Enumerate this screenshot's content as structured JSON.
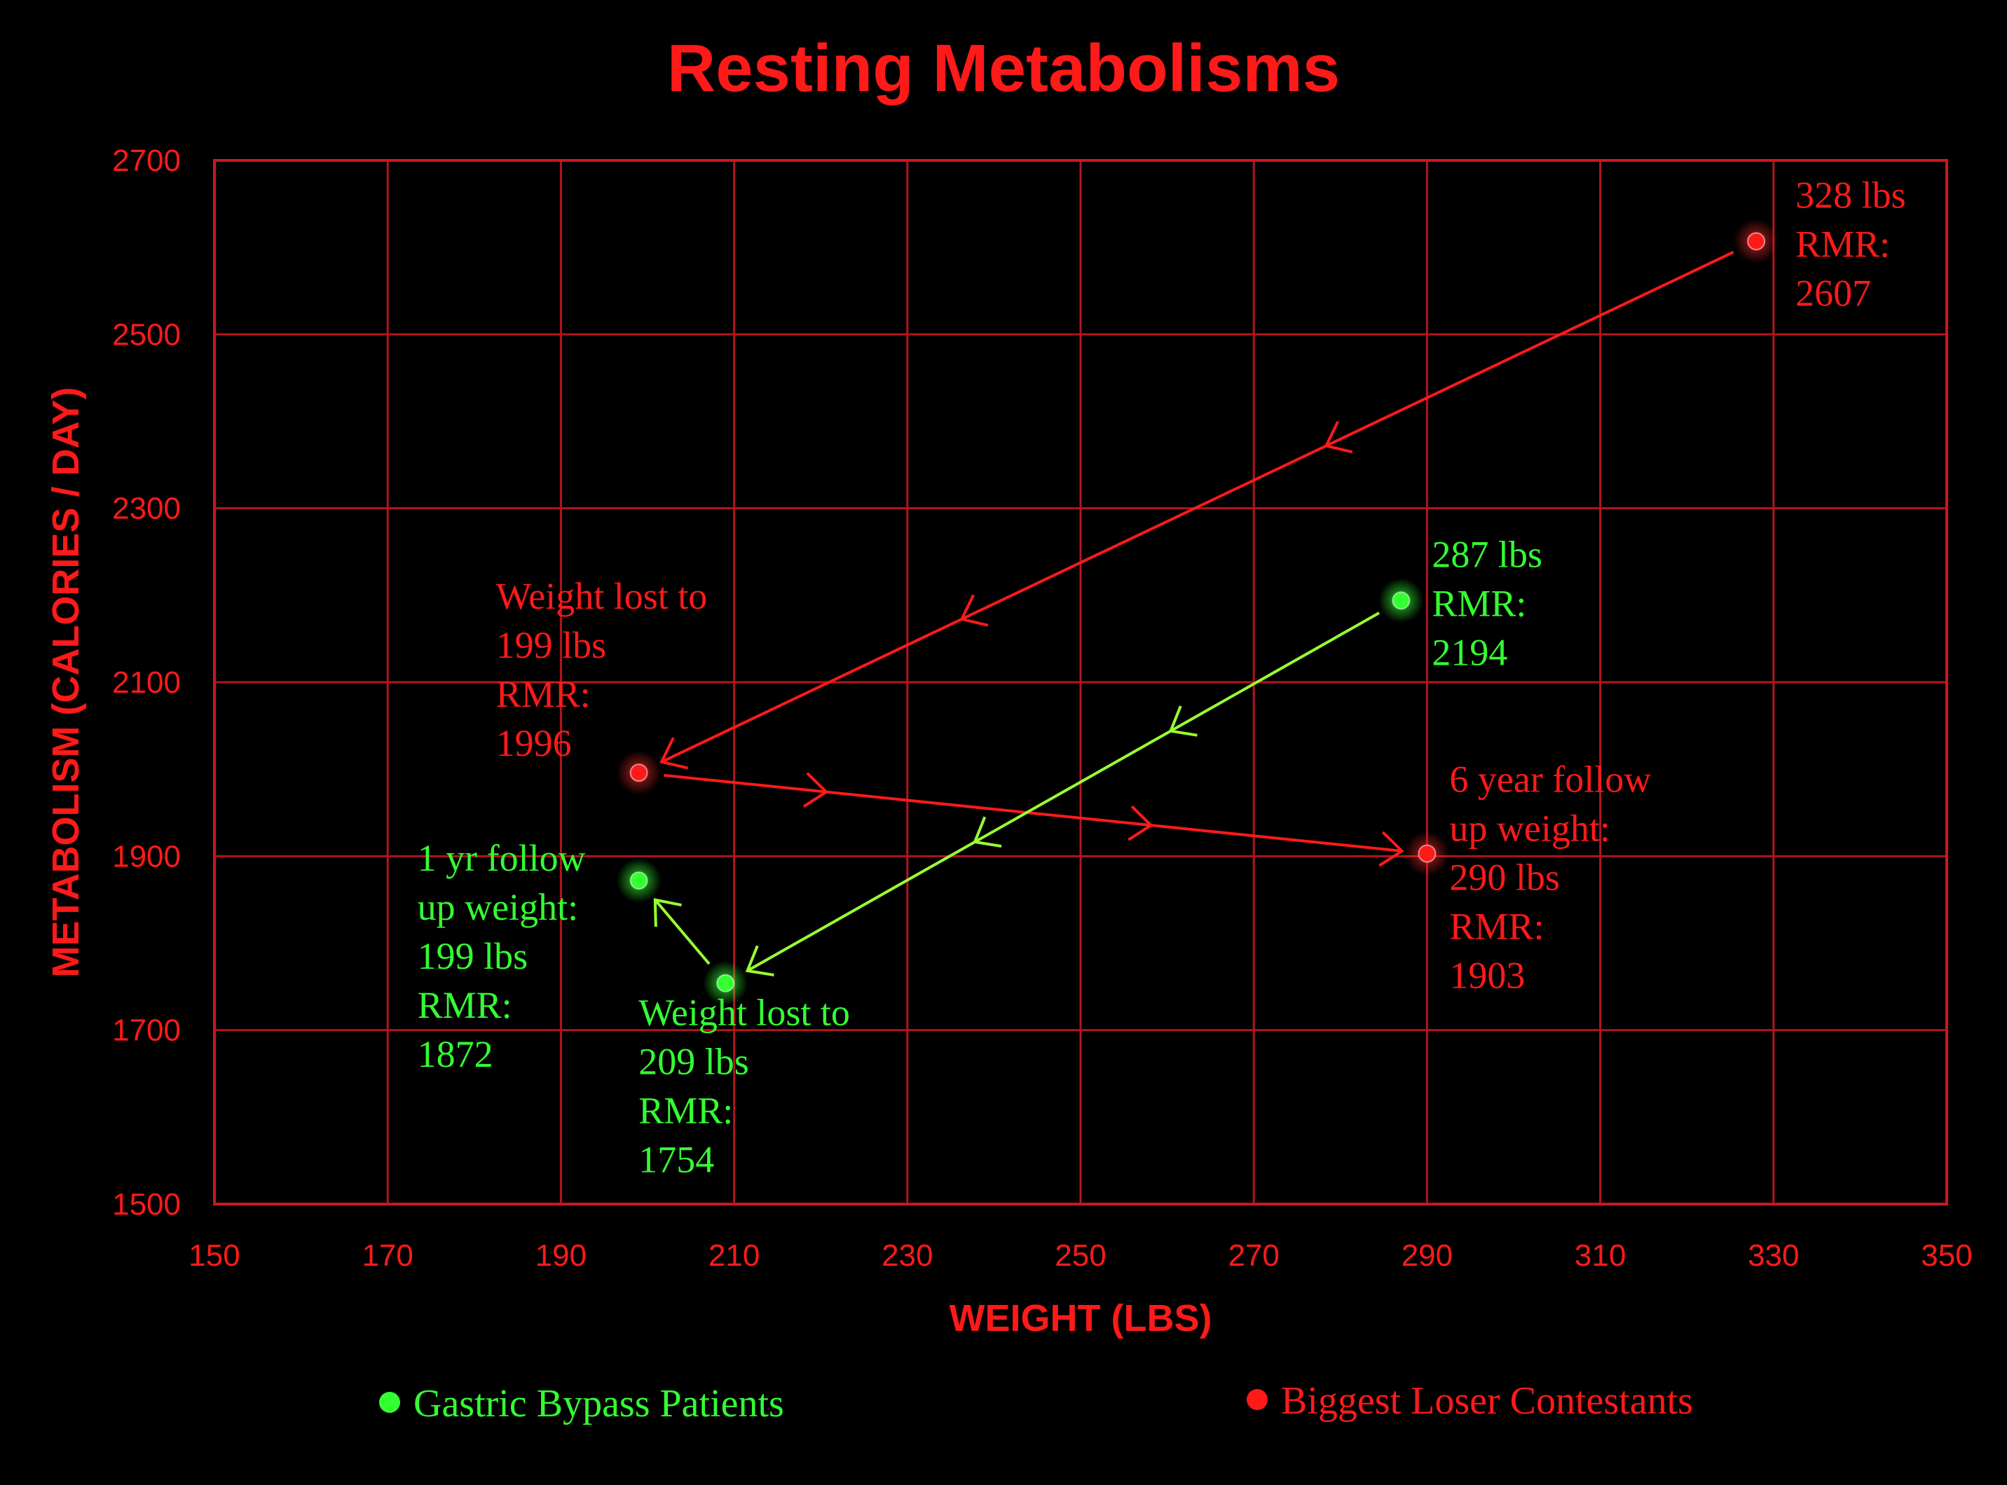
{
  "chart_data": {
    "type": "scatter",
    "title": "Resting Metabolisms",
    "xlabel": "WEIGHT (LBS)",
    "ylabel": "METABOLISM (CALORIES / DAY)",
    "xlim": [
      150,
      350
    ],
    "ylim": [
      1500,
      2700
    ],
    "xticks": [
      150,
      170,
      190,
      210,
      230,
      250,
      270,
      290,
      310,
      330,
      350
    ],
    "yticks": [
      1500,
      1700,
      1900,
      2100,
      2300,
      2500,
      2700
    ],
    "grid": true,
    "colors": {
      "green": "#33ff33",
      "red": "#ff1a1a",
      "green_line": "#99ff33"
    },
    "series": [
      {
        "name": "Gastric Bypass Patients",
        "color": "green",
        "points": [
          {
            "x": 287,
            "y": 2194,
            "label": [
              "287 lbs",
              "RMR:",
              "2194"
            ]
          },
          {
            "x": 209,
            "y": 1754,
            "label": [
              "Weight lost to",
              "209 lbs",
              "RMR:",
              "1754"
            ]
          },
          {
            "x": 199,
            "y": 1872,
            "label": [
              "1 yr follow",
              "up weight:",
              "199 lbs",
              "RMR:",
              "1872"
            ]
          }
        ]
      },
      {
        "name": "Biggest Loser Contestants",
        "color": "red",
        "points": [
          {
            "x": 328,
            "y": 2607,
            "label": [
              "328 lbs",
              "RMR:",
              "2607"
            ]
          },
          {
            "x": 199,
            "y": 1996,
            "label": [
              "Weight lost to",
              "199 lbs",
              "RMR:",
              "1996"
            ]
          },
          {
            "x": 290,
            "y": 1903,
            "label": [
              "6 year follow",
              "up weight:",
              "290 lbs",
              "RMR:",
              "1903"
            ]
          }
        ]
      }
    ],
    "legend": [
      {
        "name": "Gastric Bypass Patients",
        "color": "green"
      },
      {
        "name": "Biggest Loser Contestants",
        "color": "red"
      }
    ],
    "legend_position": "bottom"
  }
}
